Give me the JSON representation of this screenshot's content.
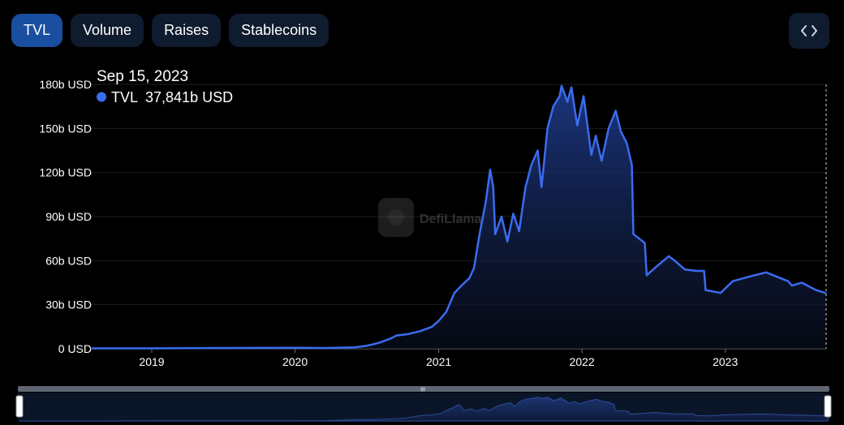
{
  "tabs": [
    {
      "label": "TVL",
      "active": true
    },
    {
      "label": "Volume",
      "active": false
    },
    {
      "label": "Raises",
      "active": false
    },
    {
      "label": "Stablecoins",
      "active": false
    }
  ],
  "embed_icon": "code-brackets-icon",
  "tooltip": {
    "date": "Sep 15, 2023",
    "series_name": "TVL",
    "value": "37,841b USD"
  },
  "watermark": "DefiLlama",
  "colors": {
    "accent": "#3b6cf0",
    "tab_active": "#1a4ea0",
    "tab_inactive": "#0f1b2e",
    "background": "#000000"
  },
  "chart_data": {
    "type": "area",
    "title": "",
    "xlabel": "",
    "ylabel": "",
    "y_tick_labels": [
      "0 USD",
      "30b USD",
      "60b USD",
      "90b USD",
      "120b USD",
      "150b USD",
      "180b USD"
    ],
    "y_ticks": [
      0,
      30,
      60,
      90,
      120,
      150,
      180
    ],
    "ylim": [
      0,
      180
    ],
    "x_tick_labels": [
      "2019",
      "2020",
      "2021",
      "2022",
      "2023"
    ],
    "x_ticks": [
      "2019-01-01",
      "2020-01-01",
      "2021-01-01",
      "2022-01-01",
      "2023-01-01"
    ],
    "xlim": [
      "2018-08-01",
      "2023-09-15"
    ],
    "grid": true,
    "series": [
      {
        "name": "TVL",
        "unit": "b USD",
        "points": [
          [
            "2018-08-01",
            0.3
          ],
          [
            "2019-01-01",
            0.3
          ],
          [
            "2019-06-01",
            0.5
          ],
          [
            "2019-10-01",
            0.6
          ],
          [
            "2020-01-01",
            0.7
          ],
          [
            "2020-03-15",
            0.5
          ],
          [
            "2020-06-01",
            1.0
          ],
          [
            "2020-07-01",
            2
          ],
          [
            "2020-08-01",
            4
          ],
          [
            "2020-09-01",
            7
          ],
          [
            "2020-09-15",
            9
          ],
          [
            "2020-10-15",
            10
          ],
          [
            "2020-11-15",
            12
          ],
          [
            "2020-12-15",
            15
          ],
          [
            "2021-01-01",
            19
          ],
          [
            "2021-01-20",
            25
          ],
          [
            "2021-02-10",
            38
          ],
          [
            "2021-02-28",
            43
          ],
          [
            "2021-03-20",
            48
          ],
          [
            "2021-04-01",
            55
          ],
          [
            "2021-04-15",
            78
          ],
          [
            "2021-05-01",
            100
          ],
          [
            "2021-05-12",
            122
          ],
          [
            "2021-05-20",
            110
          ],
          [
            "2021-05-25",
            78
          ],
          [
            "2021-06-10",
            90
          ],
          [
            "2021-06-25",
            73
          ],
          [
            "2021-07-10",
            92
          ],
          [
            "2021-07-25",
            80
          ],
          [
            "2021-08-10",
            110
          ],
          [
            "2021-08-25",
            125
          ],
          [
            "2021-09-10",
            135
          ],
          [
            "2021-09-20",
            110
          ],
          [
            "2021-10-05",
            150
          ],
          [
            "2021-10-20",
            165
          ],
          [
            "2021-11-05",
            172
          ],
          [
            "2021-11-10",
            179
          ],
          [
            "2021-11-25",
            168
          ],
          [
            "2021-12-05",
            178
          ],
          [
            "2021-12-20",
            152
          ],
          [
            "2022-01-05",
            172
          ],
          [
            "2022-01-25",
            132
          ],
          [
            "2022-02-05",
            145
          ],
          [
            "2022-02-20",
            128
          ],
          [
            "2022-03-10",
            150
          ],
          [
            "2022-03-28",
            162
          ],
          [
            "2022-04-10",
            148
          ],
          [
            "2022-04-25",
            140
          ],
          [
            "2022-05-08",
            125
          ],
          [
            "2022-05-12",
            78
          ],
          [
            "2022-06-10",
            72
          ],
          [
            "2022-06-15",
            50
          ],
          [
            "2022-07-10",
            56
          ],
          [
            "2022-08-10",
            63
          ],
          [
            "2022-08-25",
            60
          ],
          [
            "2022-09-20",
            54
          ],
          [
            "2022-10-20",
            53
          ],
          [
            "2022-11-08",
            53
          ],
          [
            "2022-11-12",
            40
          ],
          [
            "2022-12-20",
            38
          ],
          [
            "2023-01-20",
            46
          ],
          [
            "2023-03-01",
            49
          ],
          [
            "2023-04-15",
            52
          ],
          [
            "2023-06-10",
            46
          ],
          [
            "2023-06-20",
            43
          ],
          [
            "2023-07-15",
            45
          ],
          [
            "2023-08-20",
            40
          ],
          [
            "2023-09-15",
            37.8
          ]
        ]
      }
    ]
  }
}
